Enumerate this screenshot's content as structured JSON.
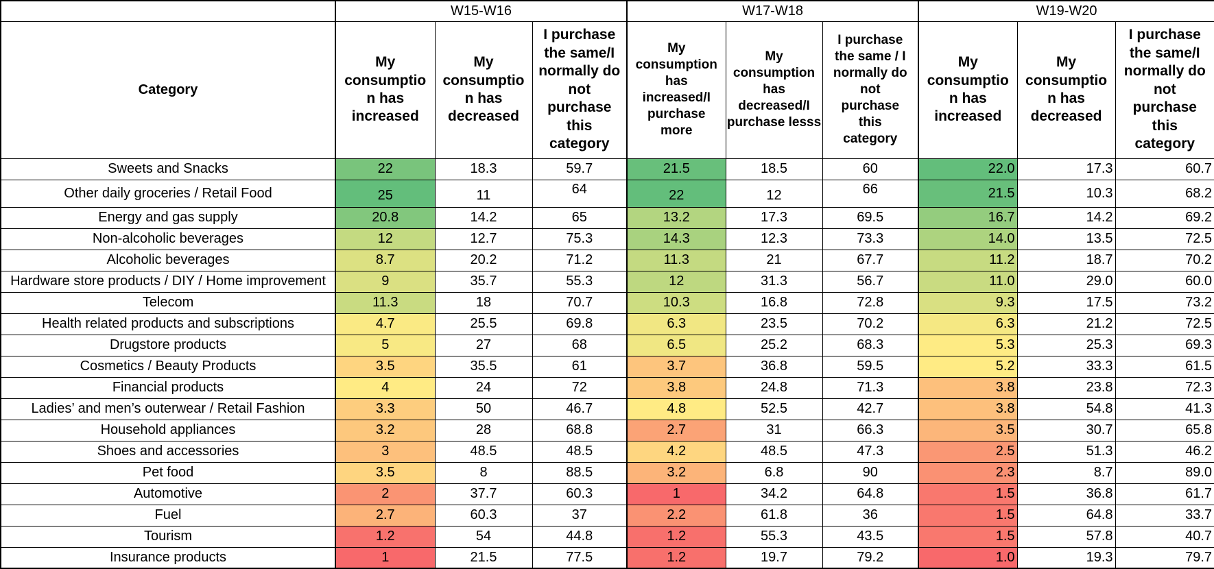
{
  "chart_data": {
    "type": "table",
    "row_header": "Category",
    "color_scale": {
      "low": "#F8696B",
      "mid": "#FFEB84",
      "high": "#63BE7B"
    },
    "groups": [
      {
        "label": "W15-W16",
        "columns": [
          "My\nconsumptio\nn has\nincreased",
          "My\nconsumptio\nn has\ndecreased",
          "I purchase\nthe same/I\nnormally do\nnot\npurchase\nthis\ncategory"
        ]
      },
      {
        "label": "W17-W18",
        "columns": [
          "My\nconsumption\nhas\nincreased/I\npurchase\nmore",
          "My\nconsumption\nhas\ndecreased/I\npurchase lesss",
          "I purchase\nthe same / I\nnormally do\nnot\npurchase\nthis\ncategory"
        ]
      },
      {
        "label": "W19-W20",
        "columns": [
          "My\nconsumptio\nn has\nincreased",
          "My\nconsumptio\nn has\ndecreased",
          "I purchase\nthe same/I\nnormally do\nnot\npurchase\nthis\ncategory"
        ]
      }
    ],
    "rows": [
      {
        "category": "Sweets and Snacks",
        "cells": [
          {
            "v": "22",
            "bg": "#79C47C"
          },
          {
            "v": "18.3"
          },
          {
            "v": "59.7"
          },
          {
            "v": "21.5",
            "bg": "#68BF7B"
          },
          {
            "v": "18.5"
          },
          {
            "v": "60"
          },
          {
            "v": "22.0",
            "bg": "#63BE7B"
          },
          {
            "v": "17.3"
          },
          {
            "v": "60.7"
          }
        ]
      },
      {
        "category": "Other daily groceries / Retail Food",
        "cells": [
          {
            "v": "25",
            "bg": "#63BE7B"
          },
          {
            "v": "11"
          },
          {
            "v": "64"
          },
          {
            "v": "22",
            "bg": "#63BE7B"
          },
          {
            "v": "12"
          },
          {
            "v": "66"
          },
          {
            "v": "21.5",
            "bg": "#68BF7B"
          },
          {
            "v": "10.3"
          },
          {
            "v": "68.2"
          }
        ]
      },
      {
        "category": "Energy and gas supply",
        "cells": [
          {
            "v": "20.8",
            "bg": "#82C77D"
          },
          {
            "v": "14.2"
          },
          {
            "v": "65"
          },
          {
            "v": "13.2",
            "bg": "#B3D580"
          },
          {
            "v": "17.3"
          },
          {
            "v": "69.5"
          },
          {
            "v": "16.7",
            "bg": "#94CC7E"
          },
          {
            "v": "14.2"
          },
          {
            "v": "69.2"
          }
        ]
      },
      {
        "category": "Non-alcoholic beverages",
        "cells": [
          {
            "v": "12",
            "bg": "#C4DA81"
          },
          {
            "v": "12.7"
          },
          {
            "v": "75.3"
          },
          {
            "v": "14.3",
            "bg": "#A9D27F"
          },
          {
            "v": "12.3"
          },
          {
            "v": "73.3"
          },
          {
            "v": "14.0",
            "bg": "#ADD37F"
          },
          {
            "v": "13.5"
          },
          {
            "v": "72.5"
          }
        ]
      },
      {
        "category": "Alcoholic beverages",
        "cells": [
          {
            "v": "8.7",
            "bg": "#DCE182"
          },
          {
            "v": "20.2"
          },
          {
            "v": "71.2"
          },
          {
            "v": "11.3",
            "bg": "#C4DA81"
          },
          {
            "v": "21"
          },
          {
            "v": "67.7"
          },
          {
            "v": "11.2",
            "bg": "#C7DB81"
          },
          {
            "v": "18.7"
          },
          {
            "v": "70.2"
          }
        ]
      },
      {
        "category": "Hardware store products / DIY / Home improvement",
        "cells": [
          {
            "v": "9",
            "bg": "#DAE082"
          },
          {
            "v": "35.7"
          },
          {
            "v": "55.3"
          },
          {
            "v": "12",
            "bg": "#BED880"
          },
          {
            "v": "31.3"
          },
          {
            "v": "56.7"
          },
          {
            "v": "11.0",
            "bg": "#C9DB81"
          },
          {
            "v": "29.0"
          },
          {
            "v": "60.0"
          }
        ]
      },
      {
        "category": "Telecom",
        "cells": [
          {
            "v": "11.3",
            "bg": "#C9DB81"
          },
          {
            "v": "18"
          },
          {
            "v": "70.7"
          },
          {
            "v": "10.3",
            "bg": "#CDDD81"
          },
          {
            "v": "16.8"
          },
          {
            "v": "72.8"
          },
          {
            "v": "9.3",
            "bg": "#D9E082"
          },
          {
            "v": "17.5"
          },
          {
            "v": "73.2"
          }
        ]
      },
      {
        "category": "Health related products and subscriptions",
        "cells": [
          {
            "v": "4.7",
            "bg": "#FAEA84"
          },
          {
            "v": "25.5"
          },
          {
            "v": "69.8"
          },
          {
            "v": "6.3",
            "bg": "#F1E783"
          },
          {
            "v": "23.5"
          },
          {
            "v": "70.2"
          },
          {
            "v": "6.3",
            "bg": "#F5E883"
          },
          {
            "v": "21.2"
          },
          {
            "v": "72.5"
          }
        ]
      },
      {
        "category": "Drugstore products",
        "cells": [
          {
            "v": "5",
            "bg": "#F8E984"
          },
          {
            "v": "27"
          },
          {
            "v": "68"
          },
          {
            "v": "6.5",
            "bg": "#F0E783"
          },
          {
            "v": "25.2"
          },
          {
            "v": "68.3"
          },
          {
            "v": "5.3",
            "bg": "#FEEB84"
          },
          {
            "v": "25.3"
          },
          {
            "v": "69.3"
          }
        ]
      },
      {
        "category": "Cosmetics / Beauty Products",
        "cells": [
          {
            "v": "3.5",
            "bg": "#FED580"
          },
          {
            "v": "35.5"
          },
          {
            "v": "61"
          },
          {
            "v": "3.7",
            "bg": "#FDC57D"
          },
          {
            "v": "36.8"
          },
          {
            "v": "59.5"
          },
          {
            "v": "5.2",
            "bg": "#FFEB84"
          },
          {
            "v": "33.3"
          },
          {
            "v": "61.5"
          }
        ]
      },
      {
        "category": "Financial products",
        "cells": [
          {
            "v": "4",
            "bg": "#FFEB84"
          },
          {
            "v": "24"
          },
          {
            "v": "72"
          },
          {
            "v": "3.8",
            "bg": "#FDC97D"
          },
          {
            "v": "24.8"
          },
          {
            "v": "71.3"
          },
          {
            "v": "3.8",
            "bg": "#FDC07C"
          },
          {
            "v": "23.8"
          },
          {
            "v": "72.3"
          }
        ]
      },
      {
        "category": "Ladies’ and men’s outerwear / Retail Fashion",
        "cells": [
          {
            "v": "3.3",
            "bg": "#FDCD7E"
          },
          {
            "v": "50"
          },
          {
            "v": "46.7"
          },
          {
            "v": "4.8",
            "bg": "#FFEB84"
          },
          {
            "v": "52.5"
          },
          {
            "v": "42.7"
          },
          {
            "v": "3.8",
            "bg": "#FDC07C"
          },
          {
            "v": "54.8"
          },
          {
            "v": "41.3"
          }
        ]
      },
      {
        "category": "Household appliances",
        "cells": [
          {
            "v": "3.2",
            "bg": "#FDC87D"
          },
          {
            "v": "28"
          },
          {
            "v": "68.8"
          },
          {
            "v": "2.7",
            "bg": "#FBA376"
          },
          {
            "v": "31"
          },
          {
            "v": "66.3"
          },
          {
            "v": "3.5",
            "bg": "#FCB67A"
          },
          {
            "v": "30.7"
          },
          {
            "v": "65.8"
          }
        ]
      },
      {
        "category": "Shoes and accessories",
        "cells": [
          {
            "v": "3",
            "bg": "#FDC07C"
          },
          {
            "v": "48.5"
          },
          {
            "v": "48.5"
          },
          {
            "v": "4.2",
            "bg": "#FED680"
          },
          {
            "v": "48.5"
          },
          {
            "v": "47.3"
          },
          {
            "v": "2.5",
            "bg": "#FA9774"
          },
          {
            "v": "51.3"
          },
          {
            "v": "46.2"
          }
        ]
      },
      {
        "category": "Pet food",
        "cells": [
          {
            "v": "3.5",
            "bg": "#FED580"
          },
          {
            "v": "8"
          },
          {
            "v": "88.5"
          },
          {
            "v": "3.2",
            "bg": "#FCB479"
          },
          {
            "v": "6.8"
          },
          {
            "v": "90"
          },
          {
            "v": "2.3",
            "bg": "#FA9173"
          },
          {
            "v": "8.7"
          },
          {
            "v": "89.0"
          }
        ]
      },
      {
        "category": "Automotive",
        "cells": [
          {
            "v": "2",
            "bg": "#FA9473"
          },
          {
            "v": "37.7"
          },
          {
            "v": "60.3"
          },
          {
            "v": "1",
            "bg": "#F8696B"
          },
          {
            "v": "34.2"
          },
          {
            "v": "64.8"
          },
          {
            "v": "1.5",
            "bg": "#F9786E"
          },
          {
            "v": "36.8"
          },
          {
            "v": "61.7"
          }
        ]
      },
      {
        "category": "Fuel",
        "cells": [
          {
            "v": "2.7",
            "bg": "#FCB379"
          },
          {
            "v": "60.3"
          },
          {
            "v": "37"
          },
          {
            "v": "2.2",
            "bg": "#FA9273"
          },
          {
            "v": "61.8"
          },
          {
            "v": "36"
          },
          {
            "v": "1.5",
            "bg": "#F9786E"
          },
          {
            "v": "64.8"
          },
          {
            "v": "33.7"
          }
        ]
      },
      {
        "category": "Tourism",
        "cells": [
          {
            "v": "1.2",
            "bg": "#F8726D"
          },
          {
            "v": "54"
          },
          {
            "v": "44.8"
          },
          {
            "v": "1.2",
            "bg": "#F8706C"
          },
          {
            "v": "55.3"
          },
          {
            "v": "43.5"
          },
          {
            "v": "1.5",
            "bg": "#F9786E"
          },
          {
            "v": "57.8"
          },
          {
            "v": "40.7"
          }
        ]
      },
      {
        "category": "Insurance products",
        "cells": [
          {
            "v": "1",
            "bg": "#F8696B"
          },
          {
            "v": "21.5"
          },
          {
            "v": "77.5"
          },
          {
            "v": "1.2",
            "bg": "#F8706C"
          },
          {
            "v": "19.7"
          },
          {
            "v": "79.2"
          },
          {
            "v": "1.0",
            "bg": "#F8696B"
          },
          {
            "v": "19.3"
          },
          {
            "v": "79.7"
          }
        ]
      }
    ]
  }
}
